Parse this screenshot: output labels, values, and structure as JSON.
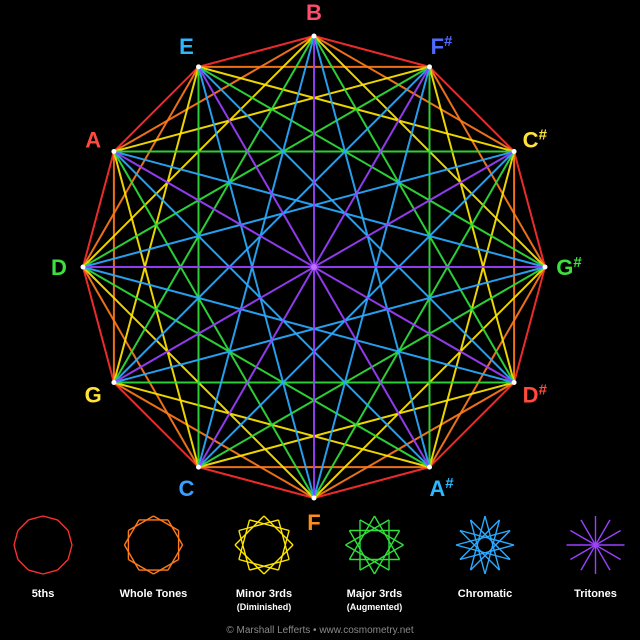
{
  "notes": [
    {
      "label": "B",
      "sharp": "",
      "color": "#ff4d6d"
    },
    {
      "label": "F",
      "sharp": "#",
      "color": "#4f6bff"
    },
    {
      "label": "C",
      "sharp": "#",
      "color": "#ffe23a"
    },
    {
      "label": "G",
      "sharp": "#",
      "color": "#3de13d"
    },
    {
      "label": "D",
      "sharp": "#",
      "color": "#ff4a3d"
    },
    {
      "label": "A",
      "sharp": "#",
      "color": "#2bb8ff"
    },
    {
      "label": "F",
      "sharp": "",
      "color": "#ff8c1a"
    },
    {
      "label": "C",
      "sharp": "",
      "color": "#3aa0ff"
    },
    {
      "label": "G",
      "sharp": "",
      "color": "#ffe23a"
    },
    {
      "label": "D",
      "sharp": "",
      "color": "#3de13d"
    },
    {
      "label": "A",
      "sharp": "",
      "color": "#ff4a3d"
    },
    {
      "label": "E",
      "sharp": "",
      "color": "#2bb8ff"
    }
  ],
  "intervals": [
    {
      "step": 1,
      "color": "#ff2f2f"
    },
    {
      "step": 2,
      "color": "#ff7a1a"
    },
    {
      "step": 3,
      "color": "#ffe600"
    },
    {
      "step": 4,
      "color": "#2fe03a"
    },
    {
      "step": 5,
      "color": "#2aaaff"
    },
    {
      "step": 6,
      "color": "#9b40ff"
    }
  ],
  "legend": [
    {
      "label": "5ths",
      "sub": "",
      "step": 1,
      "color": "#ff2f2f"
    },
    {
      "label": "Whole Tones",
      "sub": "",
      "step": 2,
      "color": "#ff7a1a"
    },
    {
      "label": "Minor 3rds",
      "sub": "(Diminished)",
      "step": 3,
      "color": "#ffe600"
    },
    {
      "label": "Major 3rds",
      "sub": "(Augmented)",
      "step": 4,
      "color": "#2fe03a"
    },
    {
      "label": "Chromatic",
      "sub": "",
      "step": 5,
      "color": "#2aaaff"
    },
    {
      "label": "Tritones",
      "sub": "",
      "step": 6,
      "color": "#9b40ff"
    }
  ],
  "credit": "© Marshall Lefferts • www.cosmometry.net"
}
